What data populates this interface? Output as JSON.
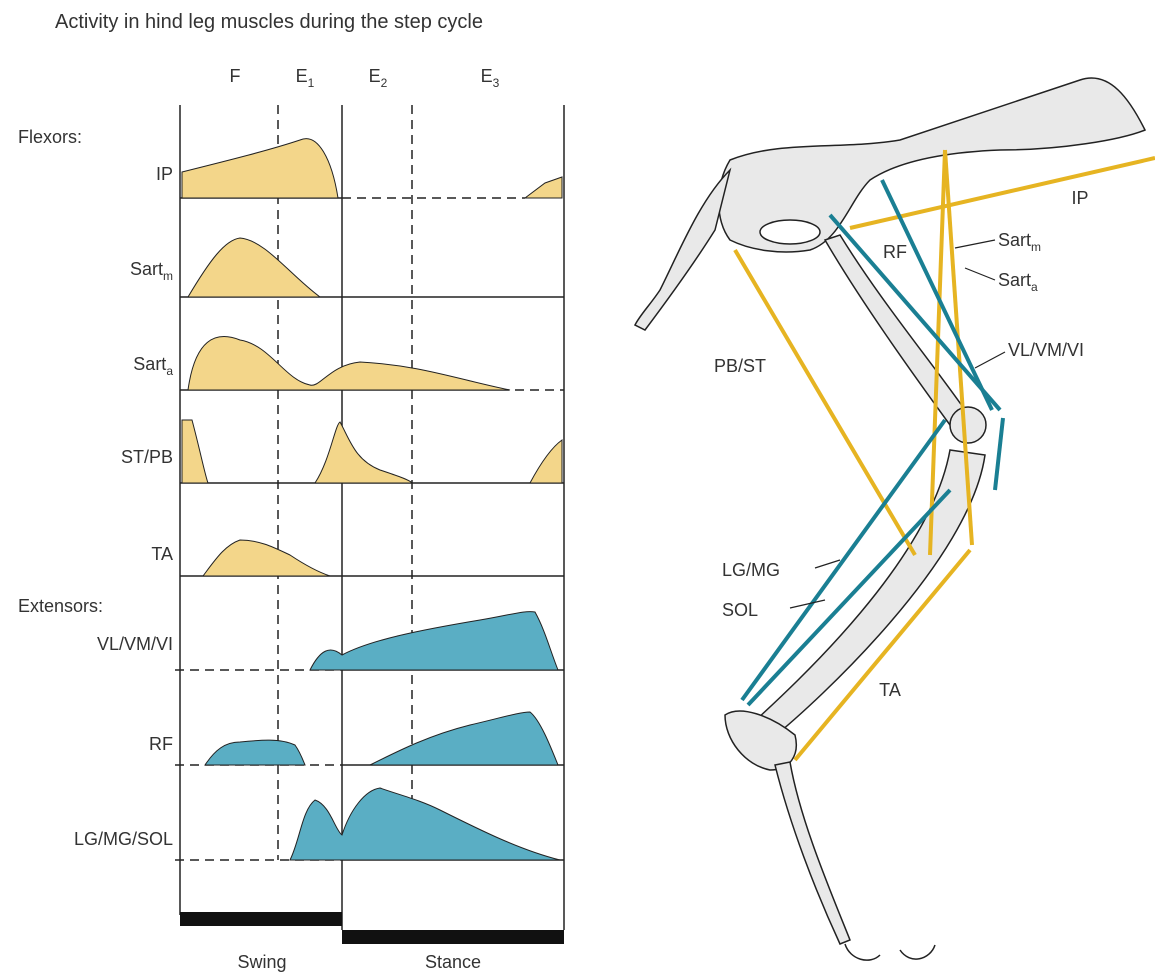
{
  "title": "Activity in hind leg muscles during the step cycle",
  "phases": [
    {
      "base": "F"
    },
    {
      "base": "E",
      "sub": "1"
    },
    {
      "base": "E",
      "sub": "2"
    },
    {
      "base": "E",
      "sub": "3"
    }
  ],
  "groups": [
    {
      "label": "Flexors:",
      "muscles": [
        {
          "base": "IP"
        },
        {
          "base": "Sart",
          "sub": "m"
        },
        {
          "base": "Sart",
          "sub": "a"
        },
        {
          "base": "ST/PB"
        },
        {
          "base": "TA"
        }
      ]
    },
    {
      "label": "Extensors:",
      "muscles": [
        {
          "base": "VL/VM/VI"
        },
        {
          "base": "RF"
        },
        {
          "base": "LG/MG/SOL"
        }
      ]
    }
  ],
  "cycle": [
    "Swing",
    "Stance"
  ],
  "anatomy_labels": [
    {
      "base": "IP"
    },
    {
      "base": "RF"
    },
    {
      "base": "Sart",
      "sub": "m"
    },
    {
      "base": "Sart",
      "sub": "a"
    },
    {
      "base": "VL/VM/VI"
    },
    {
      "base": "PB/ST"
    },
    {
      "base": "LG/MG"
    },
    {
      "base": "SOL"
    },
    {
      "base": "TA"
    }
  ]
}
